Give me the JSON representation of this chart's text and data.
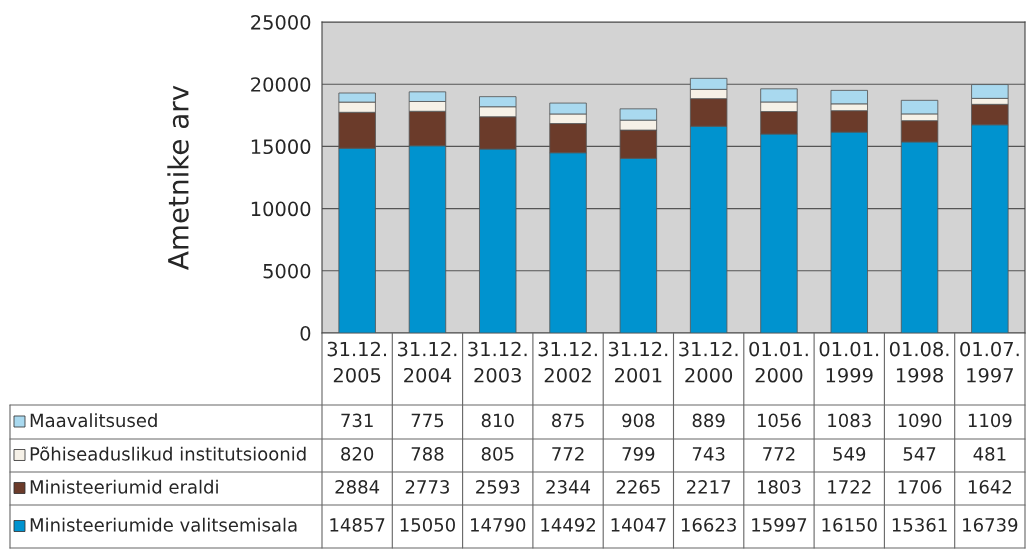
{
  "chart_data": {
    "type": "bar",
    "stacked": true,
    "ylabel": "Ametnike arv",
    "categories": [
      "31.12.\n2005",
      "31.12.\n2004",
      "31.12.\n2003",
      "31.12.\n2002",
      "31.12.\n2001",
      "31.12.\n2000",
      "01.01.\n2000",
      "01.01.\n1999",
      "01.08.\n1998",
      "01.07.\n1997"
    ],
    "series": [
      {
        "name": "Ministeeriumide valitsemisala",
        "color": "#0093cf",
        "values": [
          14857,
          15050,
          14790,
          14492,
          14047,
          16623,
          15997,
          16150,
          15361,
          16739
        ]
      },
      {
        "name": "Ministeeriumid eraldi",
        "color": "#6b3b2a",
        "values": [
          2884,
          2773,
          2593,
          2344,
          2265,
          2217,
          1803,
          1722,
          1706,
          1642
        ]
      },
      {
        "name": "Põhiseaduslikud institutsioonid",
        "color": "#f6f1e7",
        "values": [
          820,
          788,
          805,
          772,
          799,
          743,
          772,
          549,
          547,
          481
        ]
      },
      {
        "name": "Maavalitsused",
        "color": "#a9d9ef",
        "values": [
          731,
          775,
          810,
          875,
          908,
          889,
          1056,
          1083,
          1090,
          1109
        ]
      }
    ],
    "ylim": [
      0,
      25000
    ],
    "yticks": [
      0,
      5000,
      10000,
      15000,
      20000,
      25000
    ],
    "grid": "y",
    "data_labels": true,
    "legend": "bottom left"
  }
}
